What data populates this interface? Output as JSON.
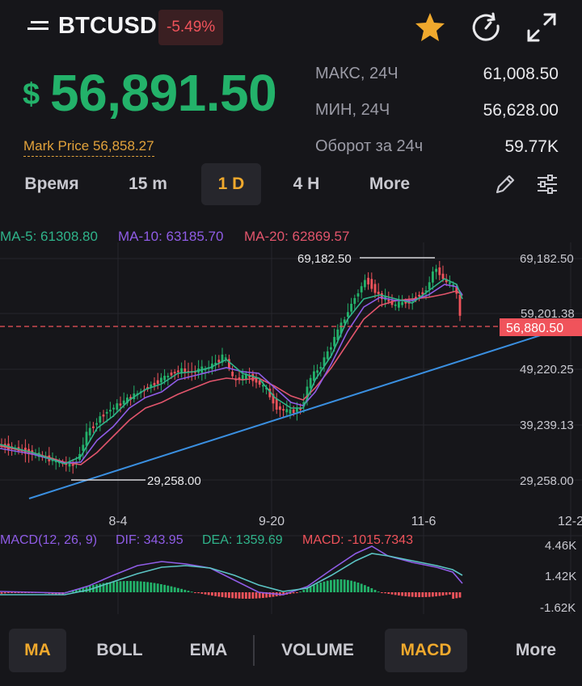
{
  "header": {
    "symbol": "BTCUSD",
    "change": "-5.49%",
    "currency_symbol": "$",
    "price": "56,891.50",
    "mark_price": "Mark Price 56,858.27",
    "icons": {
      "menu": "menu-icon",
      "favorite": "star-icon",
      "refresh": "refresh-icon",
      "expand": "expand-icon"
    },
    "stats": [
      {
        "label": "МАКС, 24Ч",
        "value": "61,008.50"
      },
      {
        "label": "МИН, 24Ч",
        "value": "56,628.00"
      },
      {
        "label": "Оборот за 24ч",
        "value": "59.77K"
      }
    ]
  },
  "intervals": {
    "items": [
      "Время",
      "15 m",
      "1 D",
      "4 H",
      "More"
    ],
    "selected": "1 D"
  },
  "ma_legend": {
    "ma5": "MA-5: 61308.80",
    "ma10": "MA-10: 63185.70",
    "ma20": "MA-20: 62869.57"
  },
  "chart": {
    "price_ticks": [
      "69,182.50",
      "59,201.38",
      "49,220.25",
      "39,239.13",
      "29,258.00"
    ],
    "date_ticks": [
      "8-4",
      "9-20",
      "11-6",
      "12-2"
    ],
    "high_label": "69,182.50",
    "low_label": "29,258.00",
    "current_price_tag": "56,880.50",
    "macd_legend": {
      "params": "MACD(12, 26, 9)",
      "dif": "DIF: 343.95",
      "dea": "DEA: 1359.69",
      "macd": "MACD: -1015.7343"
    },
    "macd_ticks": [
      "4.46K",
      "1.42K",
      "-1.62K"
    ]
  },
  "colors": {
    "up": "#23b26a",
    "down": "#f0535b",
    "accent": "#f0a92d",
    "ma5": "#2fb38a",
    "ma10": "#8f5ce6",
    "ma20": "#e2556c",
    "trendline": "#3a8fe0"
  },
  "indicators": {
    "items": [
      "MA",
      "BOLL",
      "EMA",
      "VOLUME",
      "MACD",
      "More"
    ],
    "active": [
      "MA",
      "MACD"
    ]
  }
}
